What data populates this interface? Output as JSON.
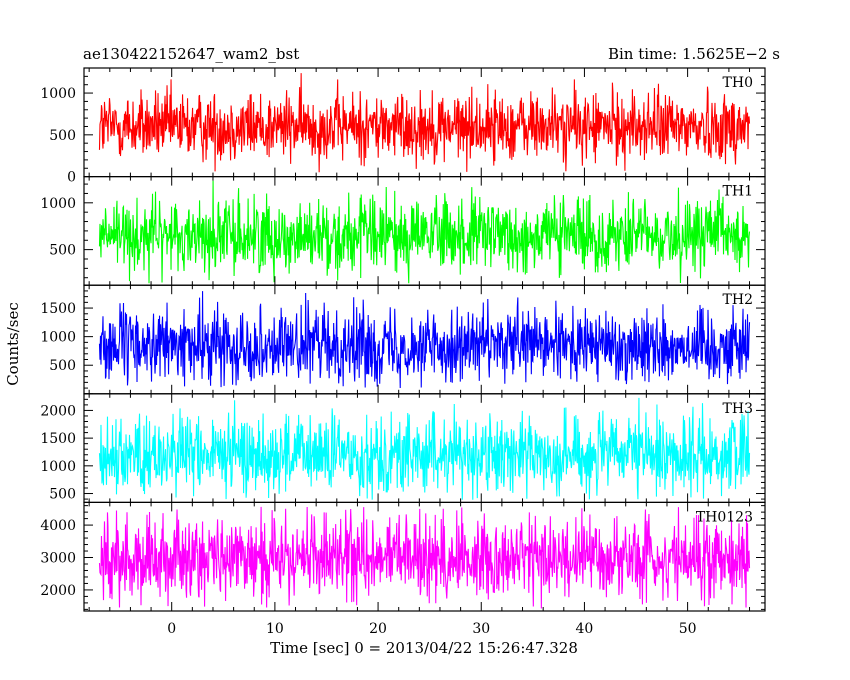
{
  "header": {
    "left_title": "ae130422152647_wam2_bst",
    "right_title": "Bin time: 1.5625E−2 s"
  },
  "chart_data": {
    "type": "line",
    "layout": "stacked-panels",
    "xlabel": "Time [sec] 0 = 2013/04/22 15:26:47.328",
    "ylabel": "Counts/sec",
    "xlim": [
      -8.5,
      57.5
    ],
    "x_range": [
      -7.0,
      56.0
    ],
    "xticks": [
      0,
      10,
      20,
      30,
      40,
      50
    ],
    "panels": [
      {
        "name": "TH0",
        "color": "#ff0000",
        "ylim": [
          0,
          1300
        ],
        "yticks": [
          0,
          500,
          1000
        ],
        "mean": 600,
        "spread": 210,
        "min": 40,
        "max": 1290
      },
      {
        "name": "TH1",
        "color": "#00ff00",
        "ylim": [
          120,
          1280
        ],
        "yticks": [
          500,
          1000
        ],
        "mean": 650,
        "spread": 200,
        "min": 140,
        "max": 1280
      },
      {
        "name": "TH2",
        "color": "#0000ff",
        "ylim": [
          0,
          1900
        ],
        "yticks": [
          500,
          1000,
          1500
        ],
        "mean": 850,
        "spread": 320,
        "min": 80,
        "max": 1900
      },
      {
        "name": "TH3",
        "color": "#00ffff",
        "ylim": [
          340,
          2300
        ],
        "yticks": [
          500,
          1000,
          1500,
          2000
        ],
        "mean": 1200,
        "spread": 360,
        "min": 380,
        "max": 2300
      },
      {
        "name": "TH0123",
        "color": "#ff00ff",
        "ylim": [
          1350,
          4700
        ],
        "yticks": [
          2000,
          3000,
          4000
        ],
        "mean": 3000,
        "spread": 650,
        "min": 1400,
        "max": 4600
      }
    ]
  }
}
